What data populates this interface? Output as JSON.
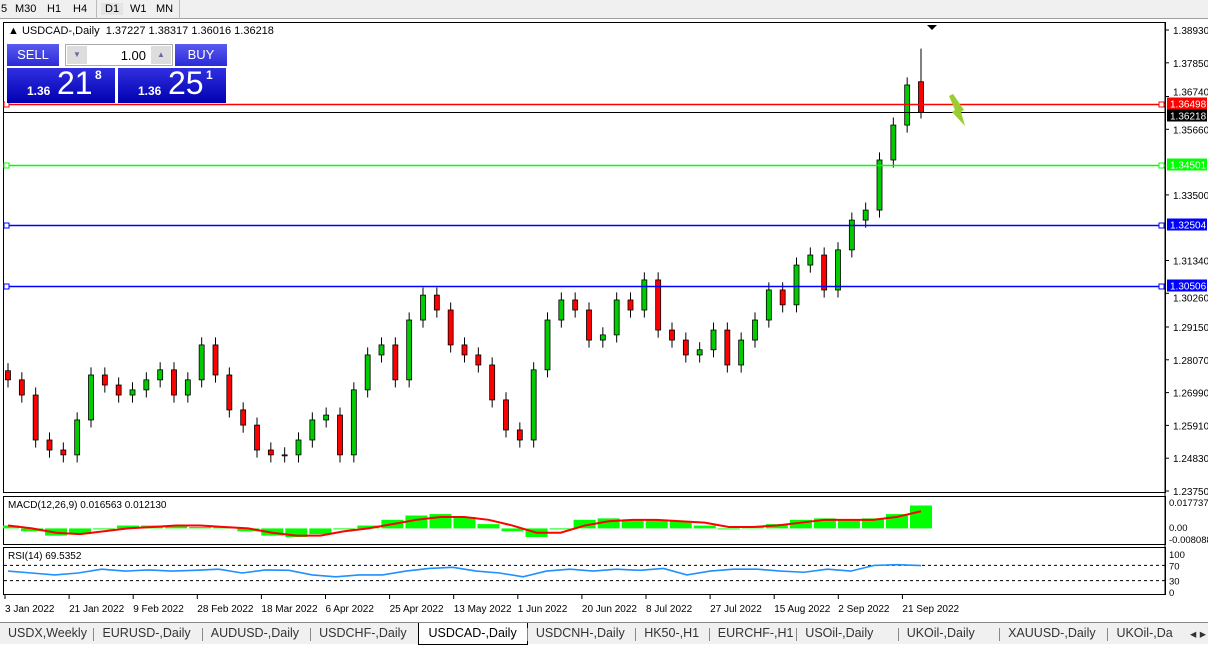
{
  "timeframes": [
    "5",
    "M30",
    "H1",
    "H4",
    "D1",
    "W1",
    "MN"
  ],
  "active_timeframe": "D1",
  "chart": {
    "header": "USDCAD-,Daily",
    "ohlc": "1.37227 1.38317 1.36016 1.36218"
  },
  "trade_panel": {
    "sell_label": "SELL",
    "buy_label": "BUY",
    "lot": "1.00",
    "sell_big": "1.36",
    "sell_mid": "21",
    "sell_sup": "8",
    "buy_big": "1.36",
    "buy_mid": "25",
    "buy_sup": "1"
  },
  "colors": {
    "bull": "#000000",
    "bear": "#ff0000",
    "up_body": "#00cc00",
    "macd_hist": "#00ff00",
    "signal": "#ff0000",
    "rsi": "#1e90ff",
    "red_line": "#ff0000",
    "green_line": "#00ff00",
    "blue_line": "#0000ff"
  },
  "chart_data": {
    "type": "candlestick",
    "ylim": [
      1.2375,
      1.3893
    ],
    "price_ticks": [
      "1.38930",
      "1.37850",
      "1.36740",
      "1.35660",
      "1.33500",
      "1.31340",
      "1.30260",
      "1.29150",
      "1.28070",
      "1.26990",
      "1.25910",
      "1.24830",
      "1.23750"
    ],
    "date_labels": [
      "3 Jan 2022",
      "21 Jan 2022",
      "9 Feb 2022",
      "28 Feb 2022",
      "18 Mar 2022",
      "6 Apr 2022",
      "25 Apr 2022",
      "13 May 2022",
      "1 Jun 2022",
      "20 Jun 2022",
      "8 Jul 2022",
      "27 Jul 2022",
      "15 Aug 2022",
      "2 Sep 2022",
      "21 Sep 2022"
    ],
    "closes": [
      1.2741,
      1.2691,
      1.2543,
      1.251,
      1.2494,
      1.2609,
      1.2757,
      1.2724,
      1.2691,
      1.2708,
      1.2741,
      1.2774,
      1.2691,
      1.2741,
      1.2856,
      1.2757,
      1.2642,
      1.2592,
      1.251,
      1.2494,
      1.2494,
      1.2543,
      1.2609,
      1.2625,
      1.2494,
      1.2708,
      1.2823,
      1.2856,
      1.2741,
      1.2938,
      1.302,
      1.2971,
      1.2856,
      1.2823,
      1.279,
      1.2675,
      1.2576,
      1.2543,
      1.2774,
      1.2938,
      1.3004,
      1.2971,
      1.2872,
      1.2889,
      1.3004,
      1.2971,
      1.307,
      1.2905,
      1.2872,
      1.2823,
      1.284,
      1.2905,
      1.279,
      1.2872,
      1.2938,
      1.3037,
      1.2988,
      1.3119,
      1.3152,
      1.3037,
      1.3169,
      1.3267,
      1.33,
      1.3465,
      1.358,
      1.3712,
      1.3622
    ],
    "last_candle": {
      "open": 1.37227,
      "high": 1.38317,
      "low": 1.36016,
      "close": 1.36218
    },
    "levels": [
      {
        "price": "1.36498",
        "color": "#ff0000"
      },
      {
        "price": "1.36218",
        "color": "#000000"
      },
      {
        "price": "1.34501",
        "color": "#00ff00"
      },
      {
        "price": "1.32504",
        "color": "#0000ff"
      },
      {
        "price": "1.30506",
        "color": "#0000ff"
      }
    ],
    "macd": {
      "label": "MACD(12,26,9) 0.016563 0.012130",
      "ticks": [
        "0.017737",
        "0.00",
        "-0.008088"
      ],
      "ylim": [
        -0.008088,
        0.017737
      ],
      "main": [
        0.002,
        -0.002,
        -0.005,
        -0.004,
        0.0,
        0.002,
        0.002,
        0.002,
        0.001,
        0.001,
        -0.002,
        -0.005,
        -0.006,
        -0.004,
        0.0,
        0.002,
        0.006,
        0.009,
        0.01,
        0.008,
        0.003,
        -0.002,
        -0.006,
        0.0,
        0.006,
        0.007,
        0.006,
        0.006,
        0.005,
        0.002,
        0.0,
        0.001,
        0.003,
        0.006,
        0.007,
        0.006,
        0.007,
        0.01,
        0.016
      ],
      "signal": [
        0.002,
        0.0,
        -0.003,
        -0.004,
        -0.002,
        0.0,
        0.001,
        0.002,
        0.002,
        0.001,
        0.0,
        -0.003,
        -0.005,
        -0.005,
        -0.002,
        0.0,
        0.003,
        0.006,
        0.008,
        0.008,
        0.006,
        0.002,
        -0.003,
        -0.003,
        0.002,
        0.005,
        0.006,
        0.006,
        0.005,
        0.004,
        0.001,
        0.001,
        0.002,
        0.004,
        0.006,
        0.006,
        0.006,
        0.008,
        0.012
      ]
    },
    "rsi": {
      "label": "RSI(14) 69.5352",
      "ticks": [
        "100",
        "70",
        "30",
        "0"
      ],
      "levels": [
        70,
        30
      ],
      "values": [
        55,
        50,
        45,
        50,
        60,
        55,
        58,
        55,
        57,
        60,
        50,
        58,
        57,
        45,
        40,
        45,
        45,
        55,
        62,
        65,
        55,
        50,
        40,
        55,
        60,
        55,
        60,
        57,
        62,
        45,
        55,
        60,
        60,
        55,
        52,
        60,
        55,
        70,
        72,
        69.5
      ]
    }
  },
  "tabs": [
    "USDX,Weekly",
    "EURUSD-,Daily",
    "AUDUSD-,Daily",
    "USDCHF-,Daily",
    "USDCAD-,Daily",
    "USDCNH-,Daily",
    "HK50-,H1",
    "EURCHF-,H1",
    "USOil-,Daily",
    "UKOil-,Daily",
    "XAUUSD-,Daily",
    "UKOil-,Da"
  ],
  "active_tab": "USDCAD-,Daily"
}
